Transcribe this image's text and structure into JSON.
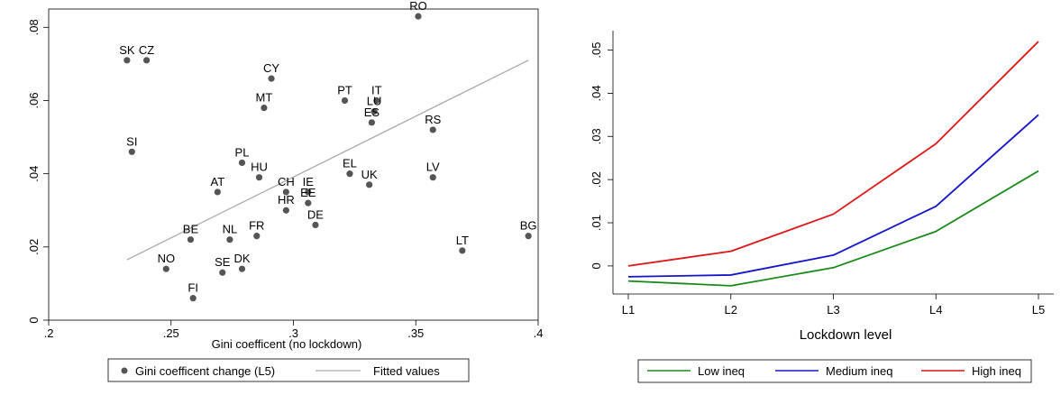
{
  "chart_data": [
    {
      "type": "scatter",
      "title": "",
      "xlabel": "Gini coefficent (no lockdown)",
      "ylabel": "",
      "xlim": [
        0.2,
        0.4
      ],
      "ylim": [
        0,
        0.085
      ],
      "x_ticks": [
        ".2",
        ".25",
        ".3",
        ".35",
        ".4"
      ],
      "y_ticks": [
        "0",
        ".02",
        ".04",
        ".06",
        ".08"
      ],
      "grid": false,
      "legend_position": "bottom",
      "points": [
        {
          "label": "RO",
          "x": 0.351,
          "y": 0.083
        },
        {
          "label": "SK",
          "x": 0.232,
          "y": 0.071
        },
        {
          "label": "CZ",
          "x": 0.24,
          "y": 0.071
        },
        {
          "label": "CY",
          "x": 0.291,
          "y": 0.066
        },
        {
          "label": "PT",
          "x": 0.321,
          "y": 0.06
        },
        {
          "label": "IT",
          "x": 0.334,
          "y": 0.06
        },
        {
          "label": "LU",
          "x": 0.333,
          "y": 0.057
        },
        {
          "label": "MT",
          "x": 0.288,
          "y": 0.058
        },
        {
          "label": "ES",
          "x": 0.332,
          "y": 0.054
        },
        {
          "label": "RS",
          "x": 0.357,
          "y": 0.052
        },
        {
          "label": "SI",
          "x": 0.234,
          "y": 0.046
        },
        {
          "label": "PL",
          "x": 0.279,
          "y": 0.043
        },
        {
          "label": "EL",
          "x": 0.323,
          "y": 0.04
        },
        {
          "label": "HU",
          "x": 0.286,
          "y": 0.039
        },
        {
          "label": "UK",
          "x": 0.331,
          "y": 0.037
        },
        {
          "label": "LV",
          "x": 0.357,
          "y": 0.039
        },
        {
          "label": "AT",
          "x": 0.269,
          "y": 0.035
        },
        {
          "label": "CH",
          "x": 0.297,
          "y": 0.035
        },
        {
          "label": "IE",
          "x": 0.306,
          "y": 0.035
        },
        {
          "label": "EE",
          "x": 0.306,
          "y": 0.032
        },
        {
          "label": "HR",
          "x": 0.297,
          "y": 0.03
        },
        {
          "label": "DE",
          "x": 0.309,
          "y": 0.026
        },
        {
          "label": "BE",
          "x": 0.258,
          "y": 0.022
        },
        {
          "label": "NL",
          "x": 0.274,
          "y": 0.022
        },
        {
          "label": "FR",
          "x": 0.285,
          "y": 0.023
        },
        {
          "label": "BG",
          "x": 0.396,
          "y": 0.023
        },
        {
          "label": "LT",
          "x": 0.369,
          "y": 0.019
        },
        {
          "label": "NO",
          "x": 0.248,
          "y": 0.014
        },
        {
          "label": "SE",
          "x": 0.271,
          "y": 0.013
        },
        {
          "label": "DK",
          "x": 0.279,
          "y": 0.014
        },
        {
          "label": "FI",
          "x": 0.259,
          "y": 0.006
        }
      ],
      "fit_line": {
        "x": [
          0.232,
          0.396
        ],
        "y": [
          0.0165,
          0.071
        ]
      },
      "legend": [
        "Gini coefficent change (L5)",
        "Fitted values"
      ],
      "colors": {
        "points": "#555555",
        "fit": "#aaaaaa",
        "plot_bg": "#ffffff",
        "outer_bg": "#ffffff"
      }
    },
    {
      "type": "line",
      "title": "",
      "xlabel": "Lockdown level",
      "ylabel": "",
      "categories": [
        "L1",
        "L2",
        "L3",
        "L4",
        "L5"
      ],
      "ylim": [
        -0.0065,
        0.0545
      ],
      "y_ticks": [
        "0",
        ".01",
        ".02",
        ".03",
        ".04",
        ".05"
      ],
      "y_tick_values": [
        0,
        0.01,
        0.02,
        0.03,
        0.04,
        0.05
      ],
      "grid": false,
      "legend_position": "bottom",
      "series": [
        {
          "name": "Low ineq",
          "color": "#1a8a1a",
          "values": [
            -0.0035,
            -0.0046,
            -0.0004,
            0.008,
            0.022
          ]
        },
        {
          "name": "Medium ineq",
          "color": "#1515cc",
          "values": [
            -0.0025,
            -0.0021,
            0.0025,
            0.0138,
            0.035
          ]
        },
        {
          "name": "High ineq",
          "color": "#e01515",
          "values": [
            0.0,
            0.0034,
            0.012,
            0.0283,
            0.052
          ]
        }
      ]
    }
  ]
}
